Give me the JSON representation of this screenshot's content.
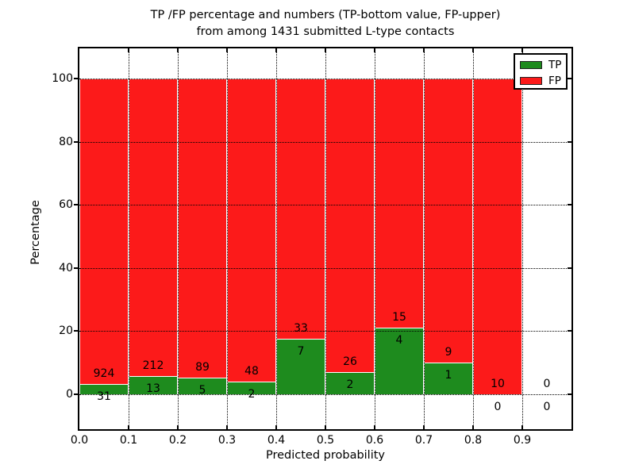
{
  "figure": {
    "title_line1": "TP /FP percentage and numbers (TP-bottom value, FP-upper)",
    "title_line2": "from among 1431 submitted L-type contacts",
    "xlabel": "Predicted probability",
    "ylabel": "Percentage"
  },
  "colors": {
    "tp": "#1e8b1e",
    "fp": "#fc1a1a",
    "grid": "#000000",
    "axes": "#000000",
    "text": "#000000",
    "background": "#ffffff"
  },
  "legend": {
    "items": [
      {
        "label": "TP",
        "color": "#1e8b1e"
      },
      {
        "label": "FP",
        "color": "#fc1a1a"
      }
    ]
  },
  "chart_data": {
    "type": "bar",
    "stacked": true,
    "normalized_to_percent": true,
    "title": "TP /FP percentage and numbers (TP-bottom value, FP-upper)\nfrom among 1431 submitted L-type contacts",
    "xlabel": "Predicted probability",
    "ylabel": "Percentage",
    "total_submitted": 1431,
    "bin_start": [
      0.0,
      0.1,
      0.2,
      0.3,
      0.4,
      0.5,
      0.6,
      0.7,
      0.8,
      0.9
    ],
    "bin_width": 0.1,
    "xticks": [
      "0.0",
      "0.1",
      "0.2",
      "0.3",
      "0.4",
      "0.5",
      "0.6",
      "0.7",
      "0.8",
      "0.9"
    ],
    "yticks": [
      0,
      20,
      40,
      60,
      80,
      100
    ],
    "xlim": [
      0.0,
      1.0
    ],
    "ylim": [
      -11,
      110
    ],
    "grid": true,
    "grid_linestyle": "dotted",
    "legend_position": "upper right",
    "series": [
      {
        "name": "TP",
        "role": "bottom",
        "color": "#1e8b1e",
        "counts": [
          31,
          13,
          5,
          2,
          7,
          2,
          4,
          1,
          0,
          0
        ]
      },
      {
        "name": "FP",
        "role": "top",
        "color": "#fc1a1a",
        "counts": [
          924,
          212,
          89,
          48,
          33,
          26,
          15,
          9,
          10,
          0
        ]
      }
    ],
    "tp_percent_by_bin": [
      3.25,
      5.78,
      5.32,
      4.0,
      17.5,
      7.14,
      21.05,
      10.0,
      0.0,
      null
    ]
  }
}
